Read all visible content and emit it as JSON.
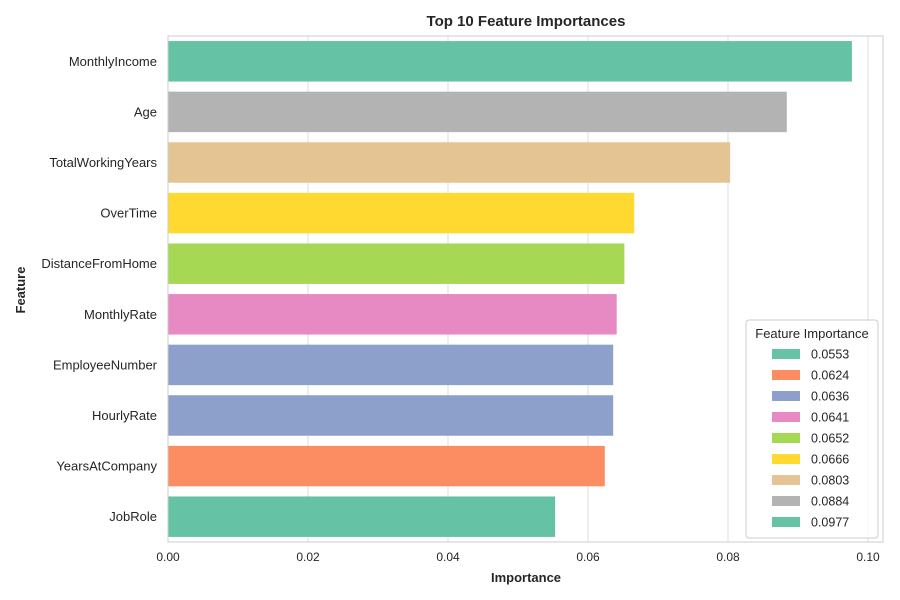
{
  "chart_data": {
    "type": "bar",
    "orientation": "horizontal",
    "title": "Top 10 Feature Importances",
    "xlabel": "Importance",
    "ylabel": "Feature",
    "xlim": [
      0.0,
      0.1
    ],
    "xticks": [
      "0.00",
      "0.02",
      "0.04",
      "0.06",
      "0.08",
      "0.10"
    ],
    "xtick_values": [
      0.0,
      0.02,
      0.04,
      0.06,
      0.08,
      0.1
    ],
    "grid": true,
    "categories": [
      "MonthlyIncome",
      "Age",
      "TotalWorkingYears",
      "OverTime",
      "DistanceFromHome",
      "MonthlyRate",
      "EmployeeNumber",
      "HourlyRate",
      "YearsAtCompany",
      "JobRole"
    ],
    "values": [
      0.0977,
      0.0884,
      0.0803,
      0.0666,
      0.0652,
      0.0641,
      0.0636,
      0.0636,
      0.0624,
      0.0553
    ],
    "bar_colors": [
      "#66c2a5",
      "#b3b3b3",
      "#e5c494",
      "#ffd92f",
      "#a6d854",
      "#e78ac3",
      "#8da0cb",
      "#8da0cb",
      "#fc8d62",
      "#66c2a5"
    ],
    "legend": {
      "title": "Feature Importance",
      "placement": "lower-right",
      "entries": [
        {
          "label": "0.0553",
          "color": "#66c2a5"
        },
        {
          "label": "0.0624",
          "color": "#fc8d62"
        },
        {
          "label": "0.0636",
          "color": "#8da0cb"
        },
        {
          "label": "0.0641",
          "color": "#e78ac3"
        },
        {
          "label": "0.0652",
          "color": "#a6d854"
        },
        {
          "label": "0.0666",
          "color": "#ffd92f"
        },
        {
          "label": "0.0803",
          "color": "#e5c494"
        },
        {
          "label": "0.0884",
          "color": "#b3b3b3"
        },
        {
          "label": "0.0977",
          "color": "#66c2a5"
        }
      ]
    }
  }
}
